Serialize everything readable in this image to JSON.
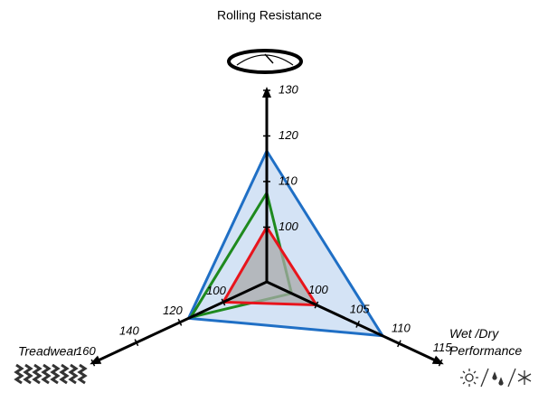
{
  "chart_data": {
    "type": "radar",
    "title": "Rolling Resistance",
    "axes": [
      {
        "name": "Rolling Resistance",
        "lim": [
          88,
          130
        ],
        "ticks": [
          100,
          110,
          120,
          130
        ]
      },
      {
        "name": "Wet /Dry Performance",
        "lim": [
          94,
          115
        ],
        "ticks": [
          100,
          105,
          110,
          115
        ]
      },
      {
        "name": "Treadwear",
        "lim": [
          80,
          160
        ],
        "ticks": [
          100,
          120,
          140,
          160
        ]
      }
    ],
    "series": [
      {
        "color": "#1f6fc5",
        "fill": "#c5d9f1",
        "values": [
          116.7,
          108,
          116
        ]
      },
      {
        "color": "#1e8a1e",
        "fill": "none",
        "values": [
          107.5,
          97,
          115
        ]
      },
      {
        "color": "#e8141c",
        "fill": "#a9a9a9",
        "values": [
          100,
          100,
          100
        ]
      }
    ]
  }
}
